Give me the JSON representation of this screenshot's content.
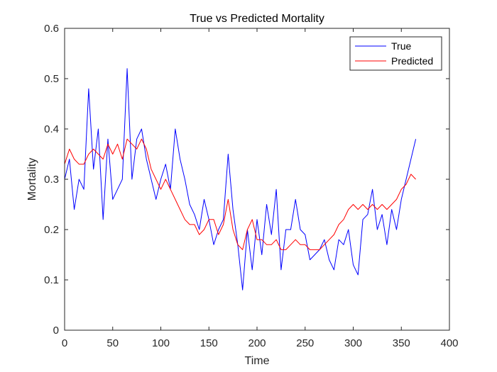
{
  "chart_data": {
    "type": "line",
    "title": "True vs Predicted Mortality",
    "xlabel": "Time",
    "ylabel": "Mortality",
    "xlim": [
      0,
      400
    ],
    "ylim": [
      0,
      0.6
    ],
    "x_ticks": [
      "0",
      "50",
      "100",
      "150",
      "200",
      "250",
      "300",
      "350",
      "400"
    ],
    "y_ticks": [
      "0",
      "0.1",
      "0.2",
      "0.3",
      "0.4",
      "0.5",
      "0.6"
    ],
    "grid": false,
    "legend_position": "top-right",
    "x_start": 0,
    "x_step": 5,
    "series": [
      {
        "name": "True",
        "color": "#0000ff",
        "values": [
          0.3,
          0.34,
          0.24,
          0.3,
          0.28,
          0.48,
          0.32,
          0.4,
          0.22,
          0.38,
          0.26,
          0.28,
          0.3,
          0.52,
          0.3,
          0.38,
          0.4,
          0.34,
          0.3,
          0.26,
          0.3,
          0.33,
          0.28,
          0.4,
          0.34,
          0.3,
          0.25,
          0.23,
          0.2,
          0.26,
          0.22,
          0.17,
          0.2,
          0.22,
          0.35,
          0.24,
          0.17,
          0.08,
          0.2,
          0.12,
          0.22,
          0.15,
          0.25,
          0.19,
          0.28,
          0.12,
          0.2,
          0.2,
          0.26,
          0.2,
          0.19,
          0.14,
          0.15,
          0.16,
          0.18,
          0.14,
          0.12,
          0.18,
          0.17,
          0.2,
          0.13,
          0.11,
          0.22,
          0.23,
          0.28,
          0.2,
          0.23,
          0.17,
          0.24,
          0.2,
          0.26,
          0.3,
          0.34,
          0.38
        ]
      },
      {
        "name": "Predicted",
        "color": "#ff0000",
        "values": [
          0.33,
          0.36,
          0.34,
          0.33,
          0.33,
          0.35,
          0.36,
          0.35,
          0.34,
          0.37,
          0.35,
          0.37,
          0.34,
          0.38,
          0.37,
          0.36,
          0.38,
          0.36,
          0.32,
          0.3,
          0.28,
          0.3,
          0.28,
          0.26,
          0.24,
          0.22,
          0.21,
          0.21,
          0.19,
          0.2,
          0.22,
          0.22,
          0.19,
          0.21,
          0.26,
          0.2,
          0.17,
          0.16,
          0.2,
          0.22,
          0.18,
          0.18,
          0.17,
          0.17,
          0.18,
          0.16,
          0.16,
          0.17,
          0.18,
          0.17,
          0.17,
          0.16,
          0.16,
          0.16,
          0.17,
          0.18,
          0.19,
          0.21,
          0.22,
          0.24,
          0.25,
          0.24,
          0.25,
          0.24,
          0.25,
          0.24,
          0.25,
          0.24,
          0.25,
          0.26,
          0.28,
          0.29,
          0.31,
          0.3
        ]
      }
    ]
  }
}
